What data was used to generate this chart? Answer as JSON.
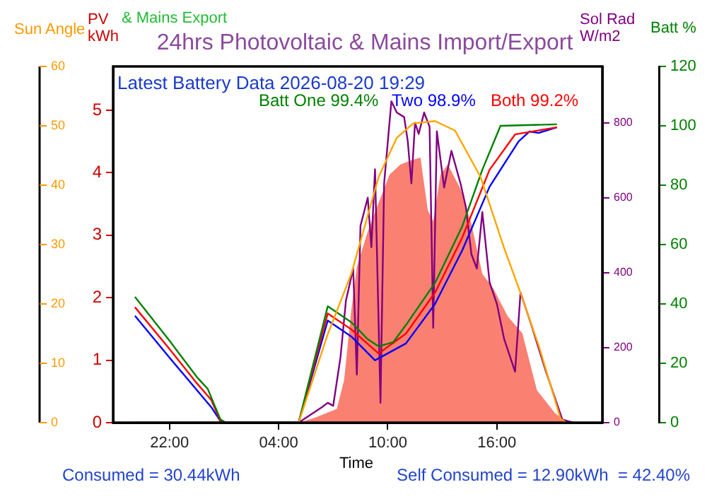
{
  "chart_data": [
    {
      "type": "line",
      "title": "24hrs Photovoltaic & Mains Import/Export",
      "xlabel": "Time",
      "ylabel": "PV kWh",
      "y2label": "Sol Rad W/m2",
      "y3label": "Batt %",
      "annotations": [
        "& Mains Export",
        "Latest Battery Data 2026-08-20 19:29",
        "Batt One 99.4%",
        "Two 98.9%",
        "Both 99.2%",
        "Consumed = 30.44kWh",
        "Self Consumed = 12.90kWh  = 42.40%"
      ],
      "xlim": [
        "2026-08-19T18:54",
        "2026-08-20T21:48"
      ],
      "xticks": [
        {
          "value": "2026-08-19T22:00",
          "label": "22:00"
        },
        {
          "value": "2026-08-20T04:00",
          "label": "04:00"
        },
        {
          "value": "2026-08-20T10:00",
          "label": "10:00"
        },
        {
          "value": "2026-08-20T16:00",
          "label": "16:00"
        }
      ],
      "ylim": [
        0,
        5.7
      ],
      "yticks": [
        0,
        1,
        2,
        3,
        4,
        5
      ],
      "y2lim": [
        0,
        950
      ],
      "y2ticks": [
        0,
        200,
        400,
        600,
        800
      ],
      "y3lim": [
        0,
        120
      ],
      "y3ticks": [
        0,
        20,
        40,
        60,
        80,
        100,
        120
      ],
      "grid": false,
      "legend": false,
      "series": [
        {
          "axis": "y3",
          "color": "#008000",
          "x": [
            "2026-08-19T20:06",
            "2026-08-19T22:00",
            "2026-08-19T23:30",
            "2026-08-20T00:06",
            "2026-08-20T00:48",
            "2026-08-20T01:06",
            "2026-08-20T05:06",
            "2026-08-20T06:42",
            "2026-08-20T08:00",
            "2026-08-20T08:54",
            "2026-08-20T09:30",
            "2026-08-20T10:18",
            "2026-08-20T11:00",
            "2026-08-20T12:36",
            "2026-08-20T14:06",
            "2026-08-20T15:12",
            "2026-08-20T16:12",
            "2026-08-20T19:18"
          ],
          "values": [
            42.4,
            27.6,
            15.4,
            11.4,
            1.1,
            0,
            0,
            39.2,
            33.8,
            28.1,
            25.7,
            27.1,
            32.9,
            47.1,
            66.2,
            85.2,
            100,
            100.5
          ]
        },
        {
          "axis": "y3",
          "color": "#ff0000",
          "x": [
            "2026-08-19T20:06",
            "2026-08-19T22:00",
            "2026-08-19T23:30",
            "2026-08-20T00:18",
            "2026-08-20T00:48",
            "2026-08-20T01:06",
            "2026-08-20T05:06",
            "2026-08-20T06:42",
            "2026-08-20T08:00",
            "2026-08-20T09:30",
            "2026-08-20T11:00",
            "2026-08-20T12:36",
            "2026-08-20T14:06",
            "2026-08-20T15:36",
            "2026-08-20T17:00",
            "2026-08-20T19:18"
          ],
          "values": [
            38.9,
            24.8,
            13.3,
            7.6,
            0.5,
            0,
            0,
            36.8,
            31.4,
            23.3,
            30.0,
            43.8,
            62.4,
            85.2,
            97.1,
            99.5
          ]
        },
        {
          "axis": "y3",
          "color": "#0000ff",
          "x": [
            "2026-08-19T20:06",
            "2026-08-19T22:00",
            "2026-08-19T23:30",
            "2026-08-20T00:18",
            "2026-08-20T00:48",
            "2026-08-20T01:06",
            "2026-08-20T05:06",
            "2026-08-20T06:42",
            "2026-08-20T08:00",
            "2026-08-20T09:18",
            "2026-08-20T11:00",
            "2026-08-20T12:36",
            "2026-08-20T14:06",
            "2026-08-20T15:36",
            "2026-08-20T17:12",
            "2026-08-20T17:48",
            "2026-08-20T18:18",
            "2026-08-20T19:18"
          ],
          "values": [
            36.0,
            21.9,
            11.0,
            5.2,
            0.5,
            0,
            0,
            34.4,
            29.0,
            21.0,
            26.7,
            40.0,
            58.1,
            79.5,
            94.8,
            98.1,
            97.6,
            99.5
          ]
        },
        {
          "axis": "y2",
          "color": "#800080",
          "x": [
            "2026-08-19T20:06",
            "2026-08-20T05:06",
            "2026-08-20T06:24",
            "2026-08-20T06:42",
            "2026-08-20T07:00",
            "2026-08-20T07:24",
            "2026-08-20T07:42",
            "2026-08-20T08:06",
            "2026-08-20T08:18",
            "2026-08-20T08:30",
            "2026-08-20T08:54",
            "2026-08-20T09:06",
            "2026-08-20T09:18",
            "2026-08-20T09:36",
            "2026-08-20T09:48",
            "2026-08-20T10:12",
            "2026-08-20T10:30",
            "2026-08-20T10:54",
            "2026-08-20T11:06",
            "2026-08-20T11:18",
            "2026-08-20T11:30",
            "2026-08-20T11:42",
            "2026-08-20T12:00",
            "2026-08-20T12:18",
            "2026-08-20T12:30",
            "2026-08-20T12:42",
            "2026-08-20T13:06",
            "2026-08-20T13:30",
            "2026-08-20T14:00",
            "2026-08-20T14:18",
            "2026-08-20T14:36",
            "2026-08-20T14:54",
            "2026-08-20T15:12",
            "2026-08-20T15:36",
            "2026-08-20T16:00",
            "2026-08-20T16:24",
            "2026-08-20T17:00",
            "2026-08-20T17:18",
            "2026-08-20T17:54",
            "2026-08-20T18:42",
            "2026-08-20T19:36",
            "2026-08-20T20:12"
          ],
          "values": [
            0,
            0,
            42,
            53,
            45,
            174,
            325,
            411,
            128,
            525,
            600,
            468,
            676,
            53,
            638,
            857,
            827,
            815,
            751,
            638,
            800,
            770,
            827,
            789,
            253,
            777,
            627,
            725,
            638,
            574,
            449,
            411,
            562,
            374,
            317,
            223,
            136,
            347,
            260,
            136,
            8,
            0
          ]
        },
        {
          "type": "area",
          "color": "#fa8072",
          "x": [
            "2026-08-20T05:06",
            "2026-08-20T06:00",
            "2026-08-20T07:12",
            "2026-08-20T07:36",
            "2026-08-20T08:00",
            "2026-08-20T08:18",
            "2026-08-20T08:54",
            "2026-08-20T09:30",
            "2026-08-20T10:06",
            "2026-08-20T10:42",
            "2026-08-20T11:18",
            "2026-08-20T11:48",
            "2026-08-20T12:12",
            "2026-08-20T12:30",
            "2026-08-20T12:54",
            "2026-08-20T13:18",
            "2026-08-20T14:00",
            "2026-08-20T14:36",
            "2026-08-20T15:12",
            "2026-08-20T15:48",
            "2026-08-20T16:36",
            "2026-08-20T17:24",
            "2026-08-20T18:12",
            "2026-08-20T19:12",
            "2026-08-20T19:54"
          ],
          "values": [
            0,
            0.08,
            0.22,
            0.68,
            1.81,
            2.49,
            3.06,
            3.52,
            3.97,
            4.13,
            4.2,
            4.24,
            3.4,
            3.22,
            3.97,
            4.13,
            3.74,
            3.18,
            2.38,
            2.15,
            1.7,
            1.43,
            0.52,
            0.15,
            0
          ]
        }
      ]
    },
    {
      "type": "line",
      "ylabel": "Sun Angle",
      "tick_labels": "y",
      "grid": false,
      "legend": false,
      "xlim": [
        "2026-08-19T18:54",
        "2026-08-20T21:48"
      ],
      "ylim": [
        0,
        60
      ],
      "yticks": [
        0,
        10,
        20,
        30,
        40,
        50,
        60
      ],
      "series": [
        {
          "color": "#ffa500",
          "x": [
            "2026-08-20T05:06",
            "2026-08-20T06:42",
            "2026-08-20T08:00",
            "2026-08-20T09:30",
            "2026-08-20T10:30",
            "2026-08-20T11:24",
            "2026-08-20T12:36",
            "2026-08-20T13:42",
            "2026-08-20T15:06",
            "2026-08-20T16:24",
            "2026-08-20T17:12",
            "2026-08-20T18:18",
            "2026-08-20T19:30",
            "2026-08-20T19:48"
          ],
          "values": [
            0,
            14.9,
            25.1,
            41.4,
            48.0,
            50.4,
            50.8,
            49.2,
            41.4,
            29.4,
            22.7,
            13.0,
            0.7,
            0
          ]
        }
      ]
    }
  ]
}
